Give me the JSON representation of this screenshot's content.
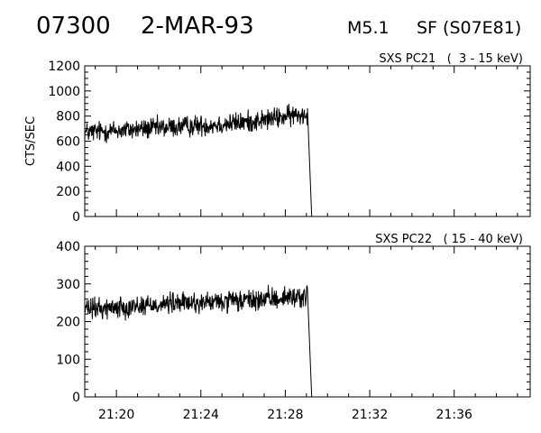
{
  "header": {
    "event_id": "07300",
    "date": "2-MAR-93",
    "class": "M5.1",
    "location": "SF (S07E81)"
  },
  "chart_data": [
    {
      "type": "line",
      "title": "SXS PC21   (  3 - 15 keV)",
      "ylabel": "CTS/SEC",
      "xlabel": "",
      "xlim": [
        "21:18.5",
        "21:39.6"
      ],
      "ylim": [
        0,
        1200
      ],
      "yticks": [
        0,
        200,
        400,
        600,
        800,
        1000,
        1200
      ],
      "yticklabels": [
        "0",
        "200",
        "400",
        "600",
        "800",
        "1000",
        "1200"
      ],
      "xticks": [
        "21:20",
        "21:24",
        "21:28",
        "21:32",
        "21:36"
      ],
      "xticklabels": [],
      "grid": false,
      "series": [
        {
          "values": [
            {
              "x": "21:18.5",
              "y": 670
            },
            {
              "x": "21:19",
              "y": 675
            },
            {
              "x": "21:20",
              "y": 685
            },
            {
              "x": "21:21",
              "y": 695
            },
            {
              "x": "21:22",
              "y": 705
            },
            {
              "x": "21:23",
              "y": 715
            },
            {
              "x": "21:24",
              "y": 725
            },
            {
              "x": "21:25",
              "y": 735
            },
            {
              "x": "21:26",
              "y": 750
            },
            {
              "x": "21:27",
              "y": 770
            },
            {
              "x": "21:28",
              "y": 795
            },
            {
              "x": "21:29",
              "y": 820
            },
            {
              "x": "21:29.05",
              "y": 820
            },
            {
              "x": "21:29.25",
              "y": 0
            }
          ]
        }
      ]
    },
    {
      "type": "line",
      "title": "SXS PC22   ( 15 - 40 keV)",
      "ylabel": "",
      "xlabel": "",
      "xlim": [
        "21:18.5",
        "21:39.6"
      ],
      "ylim": [
        0,
        400
      ],
      "yticks": [
        0,
        100,
        200,
        300,
        400
      ],
      "yticklabels": [
        "0",
        "100",
        "200",
        "300",
        "400"
      ],
      "xticks": [
        "21:20",
        "21:24",
        "21:28",
        "21:32",
        "21:36"
      ],
      "xticklabels": [
        "21:20",
        "21:24",
        "21:28",
        "21:32",
        "21:36"
      ],
      "grid": false,
      "series": [
        {
          "values": [
            {
              "x": "21:18.5",
              "y": 232
            },
            {
              "x": "21:19",
              "y": 234
            },
            {
              "x": "21:20",
              "y": 238
            },
            {
              "x": "21:21",
              "y": 242
            },
            {
              "x": "21:22",
              "y": 246
            },
            {
              "x": "21:23",
              "y": 249
            },
            {
              "x": "21:24",
              "y": 250
            },
            {
              "x": "21:25",
              "y": 252
            },
            {
              "x": "21:26",
              "y": 255
            },
            {
              "x": "21:27",
              "y": 258
            },
            {
              "x": "21:28",
              "y": 264
            },
            {
              "x": "21:29",
              "y": 268
            },
            {
              "x": "21:29.05",
              "y": 268
            },
            {
              "x": "21:29.25",
              "y": 0
            }
          ]
        }
      ]
    }
  ]
}
